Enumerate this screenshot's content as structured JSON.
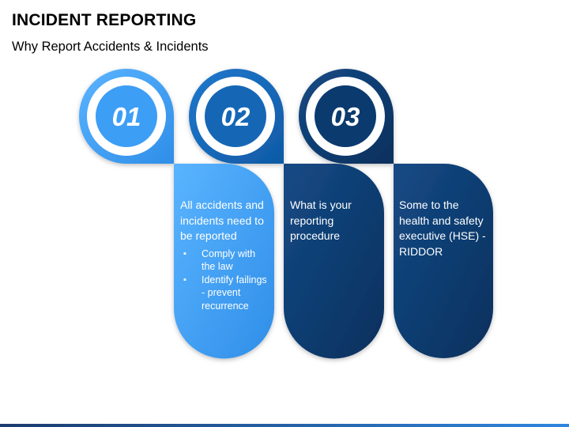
{
  "header": {
    "title": "INCIDENT REPORTING",
    "subtitle": "Why Report Accidents & Incidents"
  },
  "steps": [
    {
      "number": "01",
      "color": "#3d9ef5",
      "text": "All accidents and incidents need to be reported",
      "bullets": [
        "Comply with the law",
        "Identify failings - prevent recurrence"
      ]
    },
    {
      "number": "02",
      "color": "#1567b6",
      "text": "What is your reporting procedure",
      "bullets": []
    },
    {
      "number": "03",
      "color": "#0b3a6e",
      "text": "Some to the health and safety executive (HSE) - RIDDOR",
      "bullets": []
    }
  ]
}
